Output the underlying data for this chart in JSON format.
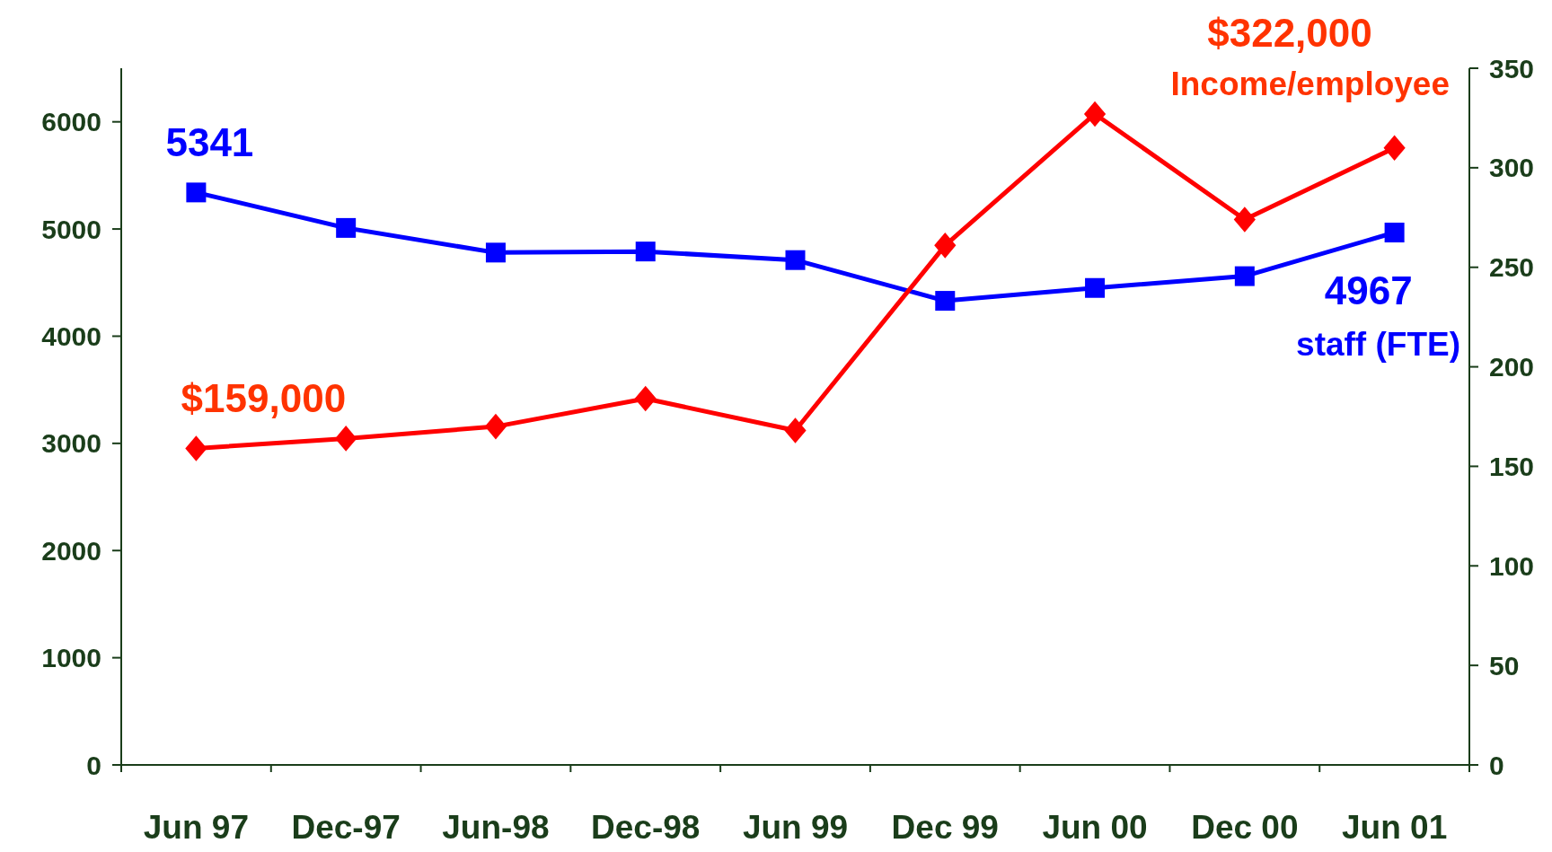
{
  "chart_data": {
    "type": "line",
    "categories": [
      "Jun 97",
      "Dec-97",
      "Jun-98",
      "Dec-98",
      "Jun 99",
      "Dec 99",
      "Jun 00",
      "Dec 00",
      "Jun 01"
    ],
    "series": [
      {
        "name": "staff (FTE)",
        "color": "#0000ff",
        "marker": "square",
        "values": [
          5341,
          5010,
          4780,
          4790,
          4710,
          4330,
          4450,
          4560,
          4967
        ],
        "value_labels": [
          "5341",
          null,
          null,
          null,
          null,
          null,
          null,
          null,
          "4967"
        ]
      },
      {
        "name": "Income/employee",
        "color": "#ff0000",
        "marker": "diamond",
        "axis": "y2",
        "values": [
          159,
          164,
          170,
          184,
          168,
          261,
          327,
          274,
          310
        ]
      }
    ],
    "ylim": [
      0,
      6500
    ],
    "yticks": [
      0,
      1000,
      2000,
      3000,
      4000,
      5000,
      6000
    ],
    "y2lim": [
      0,
      350
    ],
    "y2ticks": [
      0,
      50,
      100,
      150,
      200,
      250,
      300,
      350
    ],
    "annotations": [
      "$159,000",
      "$322,000"
    ],
    "grid": false
  }
}
